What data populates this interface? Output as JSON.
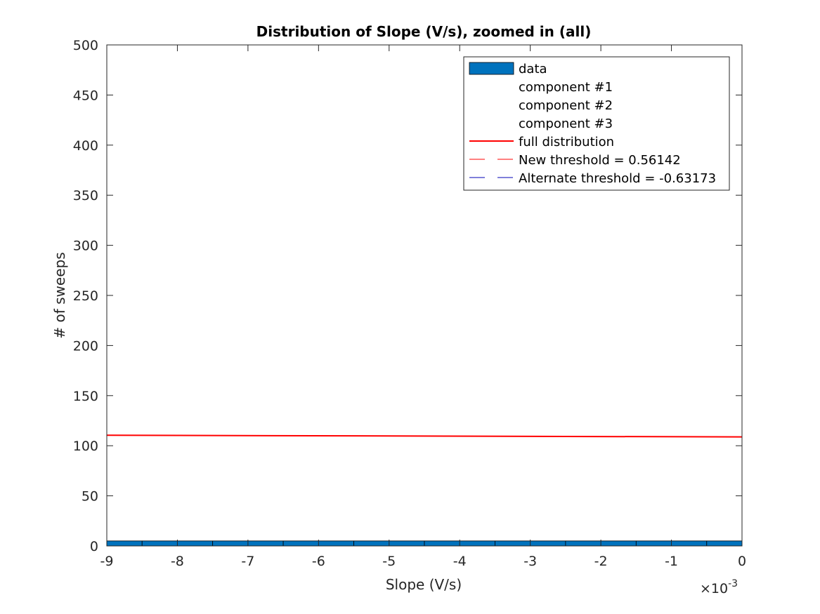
{
  "chart_data": {
    "type": "bar",
    "title": "Distribution of Slope (V/s), zoomed in (all)",
    "xlabel": "Slope (V/s)",
    "ylabel": "# of sweeps",
    "xlim": [
      -9,
      0
    ],
    "ylim": [
      0,
      500
    ],
    "x_exponent_label": "×10",
    "x_exponent_power": "-3",
    "x_ticks": [
      -9,
      -8,
      -7,
      -6,
      -5,
      -4,
      -3,
      -2,
      -1,
      0
    ],
    "x_tick_labels": [
      "-9",
      "-8",
      "-7",
      "-6",
      "-5",
      "-4",
      "-3",
      "-2",
      "-1",
      "0"
    ],
    "y_ticks": [
      0,
      50,
      100,
      150,
      200,
      250,
      300,
      350,
      400,
      450,
      500
    ],
    "y_tick_labels": [
      "0",
      "50",
      "100",
      "150",
      "200",
      "250",
      "300",
      "350",
      "400",
      "450",
      "500"
    ],
    "grid": false,
    "legend_position": "top-right",
    "series": [
      {
        "name": "data",
        "kind": "bar",
        "color": "#0072BD",
        "x": [
          -9,
          -8,
          -7,
          -6,
          -5,
          -4,
          -3,
          -2,
          -1,
          0
        ],
        "values": [
          5,
          5,
          5,
          5,
          5,
          5,
          5,
          5,
          5,
          5
        ]
      },
      {
        "name": "component #1",
        "kind": "line",
        "color": "#ffffff",
        "x": [],
        "values": []
      },
      {
        "name": "component #2",
        "kind": "line",
        "color": "#ffffff",
        "x": [],
        "values": []
      },
      {
        "name": "component #3",
        "kind": "line",
        "color": "#ffffff",
        "x": [],
        "values": []
      },
      {
        "name": "full distribution",
        "kind": "line",
        "color": "#FF0000",
        "x": [
          -9,
          0
        ],
        "values": [
          110.5,
          108.8
        ]
      },
      {
        "name": "New threshold = 0.56142",
        "kind": "vline",
        "color": "#FF0000",
        "dash": "dashed",
        "x": [],
        "values": []
      },
      {
        "name": "Alternate threshold = -0.63173",
        "kind": "vline",
        "color": "#0000B4",
        "dash": "dashed",
        "x": [],
        "values": []
      }
    ]
  }
}
